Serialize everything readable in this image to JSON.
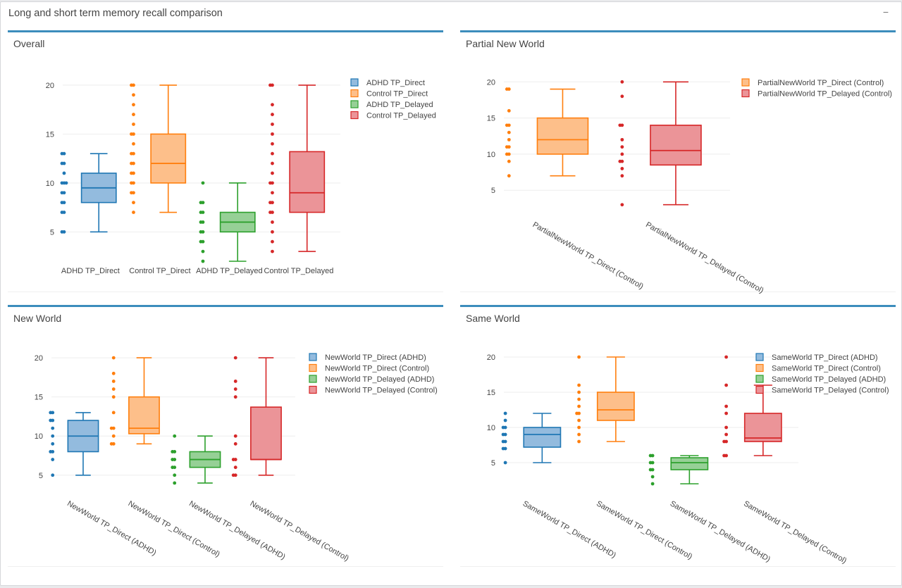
{
  "header": {
    "title": "Long and short term memory recall comparison",
    "collapse_label": "−"
  },
  "colors": {
    "blue": "#1f77b4",
    "orange": "#ff7f0e",
    "green": "#2ca02c",
    "red": "#d62728",
    "accent": "#3c8dbc"
  },
  "panels": [
    {
      "title": "Overall",
      "chart_data": {
        "type": "box",
        "title": "Overall",
        "ylim": [
          2,
          21
        ],
        "yticks": [
          5,
          10,
          15,
          20
        ],
        "tick_rotation": 0,
        "series": [
          {
            "name": "ADHD TP_Direct",
            "label": "ADHD TP_Direct",
            "color": "blue",
            "min": 5,
            "q1": 8,
            "median": 9.5,
            "q3": 11,
            "max": 13,
            "points": [
              5,
              5,
              7,
              7,
              8,
              8,
              9,
              9,
              10,
              10,
              10,
              11,
              12,
              12,
              13,
              13
            ]
          },
          {
            "name": "Control TP_Direct",
            "label": "Control TP_Direct",
            "color": "orange",
            "min": 7,
            "q1": 10,
            "median": 12,
            "q3": 15,
            "max": 20,
            "points": [
              7,
              8,
              9,
              9,
              10,
              10,
              11,
              11,
              12,
              12,
              13,
              13,
              14,
              15,
              15,
              16,
              17,
              18,
              19,
              20,
              20
            ]
          },
          {
            "name": "ADHD TP_Delayed",
            "label": "ADHD TP_Delayed",
            "color": "green",
            "min": 2,
            "q1": 5,
            "median": 6,
            "q3": 7,
            "max": 10,
            "points": [
              2,
              3,
              4,
              4,
              5,
              5,
              6,
              6,
              7,
              7,
              8,
              8,
              10
            ]
          },
          {
            "name": "Control TP_Delayed",
            "label": "Control TP_Delayed",
            "color": "red",
            "min": 3,
            "q1": 7,
            "median": 9,
            "q3": 13.2,
            "max": 20,
            "points": [
              3,
              4,
              5,
              6,
              7,
              7,
              8,
              8,
              9,
              10,
              10,
              11,
              12,
              13,
              14,
              15,
              16,
              17,
              18,
              20,
              20
            ]
          }
        ]
      }
    },
    {
      "title": "Partial New World",
      "chart_data": {
        "type": "box",
        "title": "Partial New World",
        "ylim": [
          2,
          21
        ],
        "yticks": [
          5,
          10,
          15,
          20
        ],
        "tick_rotation": 30,
        "series": [
          {
            "name": "PartialNewWorld TP_Direct (Control)",
            "label": "PartialNewWorld TP_Direct (Control)",
            "color": "orange",
            "min": 7,
            "q1": 10,
            "median": 12,
            "q3": 15,
            "max": 19,
            "points": [
              7,
              9,
              10,
              10,
              11,
              11,
              12,
              13,
              14,
              14,
              16,
              19,
              19
            ]
          },
          {
            "name": "PartialNewWorld TP_Delayed (Control)",
            "label": "PartialNewWorld TP_Delayed (Control)",
            "color": "red",
            "min": 3,
            "q1": 8.5,
            "median": 10.5,
            "q3": 14,
            "max": 20,
            "points": [
              3,
              7,
              8,
              9,
              9,
              10,
              11,
              12,
              14,
              14,
              18,
              20
            ]
          }
        ]
      }
    },
    {
      "title": "New World",
      "chart_data": {
        "type": "box",
        "title": "New World",
        "ylim": [
          3,
          21
        ],
        "yticks": [
          5,
          10,
          15,
          20
        ],
        "tick_rotation": 30,
        "series": [
          {
            "name": "NewWorld TP_Direct (ADHD)",
            "label": "NewWorld TP_Direct (ADHD)",
            "color": "blue",
            "min": 5,
            "q1": 8,
            "median": 10,
            "q3": 12,
            "max": 13,
            "points": [
              5,
              7,
              8,
              8,
              9,
              10,
              11,
              12,
              12,
              13,
              13
            ]
          },
          {
            "name": "NewWorld TP_Direct (Control)",
            "label": "NewWorld TP_Direct (Control)",
            "color": "orange",
            "min": 9,
            "q1": 10.3,
            "median": 11,
            "q3": 15,
            "max": 20,
            "points": [
              9,
              9,
              10,
              11,
              11,
              13,
              15,
              16,
              17,
              18,
              20
            ]
          },
          {
            "name": "NewWorld TP_Delayed (ADHD)",
            "label": "NewWorld TP_Delayed (ADHD)",
            "color": "green",
            "min": 4,
            "q1": 6,
            "median": 7,
            "q3": 8,
            "max": 10,
            "points": [
              4,
              5,
              6,
              6,
              7,
              7,
              8,
              8,
              10
            ]
          },
          {
            "name": "NewWorld TP_Delayed (Control)",
            "label": "NewWorld TP_Delayed (Control)",
            "color": "red",
            "min": 5,
            "q1": 7,
            "median": 7,
            "q3": 13.7,
            "max": 20,
            "points": [
              5,
              5,
              6,
              7,
              7,
              9,
              10,
              15,
              16,
              17,
              20
            ]
          }
        ]
      }
    },
    {
      "title": "Same World",
      "chart_data": {
        "type": "box",
        "title": "Same World",
        "ylim": [
          1,
          21
        ],
        "yticks": [
          5,
          10,
          15,
          20
        ],
        "tick_rotation": 30,
        "series": [
          {
            "name": "SameWorld TP_Direct (ADHD)",
            "label": "SameWorld TP_Direct (ADHD)",
            "color": "blue",
            "min": 5,
            "q1": 7.2,
            "median": 9,
            "q3": 10,
            "max": 12,
            "points": [
              5,
              7,
              7,
              8,
              8,
              9,
              9,
              10,
              10,
              11,
              12
            ]
          },
          {
            "name": "SameWorld TP_Direct (Control)",
            "label": "SameWorld TP_Direct (Control)",
            "color": "orange",
            "min": 8,
            "q1": 11,
            "median": 12.5,
            "q3": 15,
            "max": 20,
            "points": [
              8,
              9,
              10,
              11,
              12,
              12,
              13,
              14,
              15,
              16,
              20
            ]
          },
          {
            "name": "SameWorld TP_Delayed (ADHD)",
            "label": "SameWorld TP_Delayed (ADHD)",
            "color": "green",
            "min": 2,
            "q1": 4,
            "median": 5,
            "q3": 5.7,
            "max": 6,
            "points": [
              2,
              3,
              4,
              4,
              5,
              5,
              6,
              6
            ]
          },
          {
            "name": "SameWorld TP_Delayed (Control)",
            "label": "SameWorld TP_Delayed (Control)",
            "color": "red",
            "min": 6,
            "q1": 8,
            "median": 8.5,
            "q3": 12,
            "max": 16,
            "points": [
              6,
              6,
              8,
              8,
              9,
              10,
              12,
              13,
              16,
              20
            ]
          }
        ]
      }
    }
  ]
}
